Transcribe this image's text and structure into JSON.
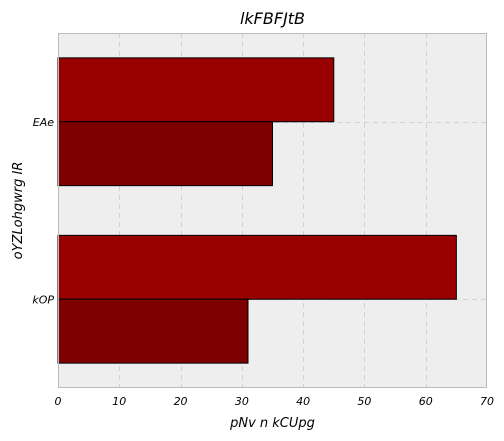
{
  "chart_data": {
    "type": "bar",
    "orientation": "horizontal",
    "title": "lkFBFJtB",
    "xlabel": "pNv n kCUpg",
    "ylabel": "oYZLohgwrg IR",
    "categories": [
      "kOP",
      "EAe"
    ],
    "series": [
      {
        "values": [
          65,
          45
        ],
        "color": "#990000"
      },
      {
        "values": [
          31,
          35
        ],
        "color": "#7f0000"
      }
    ],
    "xlim": [
      0,
      70
    ],
    "xticks": [
      "0",
      "10",
      "20",
      "30",
      "40",
      "50",
      "60",
      "70"
    ],
    "grid": true,
    "background_color": "#eeeeee"
  }
}
